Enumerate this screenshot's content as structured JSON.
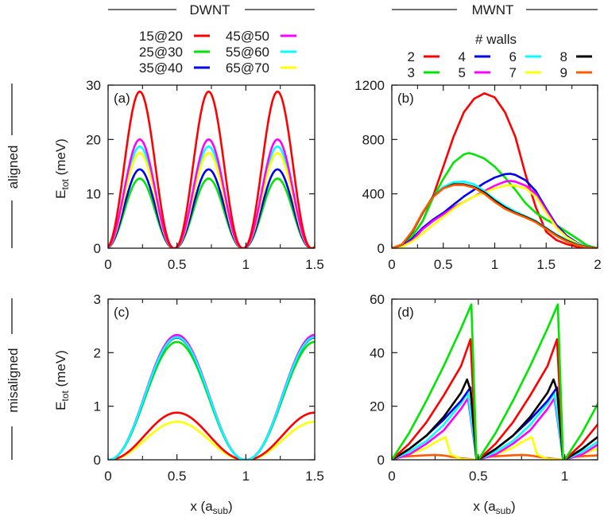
{
  "column_headers": {
    "left": "DWNT",
    "right": "MWNT"
  },
  "row_headers": {
    "top": "aligned",
    "bottom": "misaligned"
  },
  "axis_labels": {
    "y": "E",
    "y_sub": "tot",
    "y_unit": " (meV)",
    "x": "x  (a",
    "x_sub": "sub",
    "x_close": ")"
  },
  "legend_dwnt": {
    "items": [
      {
        "label": "15@20",
        "color": "#ff0000"
      },
      {
        "label": "25@30",
        "color": "#00e600"
      },
      {
        "label": "35@40",
        "color": "#0000ee"
      },
      {
        "label": "45@50",
        "color": "#ff00ff"
      },
      {
        "label": "55@60",
        "color": "#00ffff"
      },
      {
        "label": "65@70",
        "color": "#ffff00"
      }
    ]
  },
  "legend_mwnt": {
    "title": "# walls",
    "items": [
      {
        "label": "2",
        "color": "#ff0000"
      },
      {
        "label": "3",
        "color": "#00e600"
      },
      {
        "label": "4",
        "color": "#0000ee"
      },
      {
        "label": "5",
        "color": "#ff00ff"
      },
      {
        "label": "6",
        "color": "#00ffff"
      },
      {
        "label": "7",
        "color": "#ffff00"
      },
      {
        "label": "8",
        "color": "#000000"
      },
      {
        "label": "9",
        "color": "#ff5a00"
      }
    ]
  },
  "chart_data": [
    {
      "panel": "(a)",
      "type": "line",
      "title": "DWNT aligned",
      "xlabel": "",
      "ylabel": "E_tot (meV)",
      "xlim": [
        0,
        1.5
      ],
      "ylim": [
        0,
        30
      ],
      "xticks": [
        "0",
        "0.5",
        "1",
        "1.5"
      ],
      "yticks": [
        "0",
        "10",
        "20",
        "30"
      ],
      "period": 0.5,
      "peak_x": 0.22,
      "minimum_x": 0.48,
      "series": [
        {
          "name": "15@20",
          "color": "#ff0000",
          "peak": 28.8
        },
        {
          "name": "25@30",
          "color": "#00e600",
          "peak": 12.8
        },
        {
          "name": "35@40",
          "color": "#0000ee",
          "peak": 14.5
        },
        {
          "name": "45@50",
          "color": "#ff00ff",
          "peak": 20.0
        },
        {
          "name": "55@60",
          "color": "#00ffff",
          "peak": 18.7
        },
        {
          "name": "65@70",
          "color": "#ffff00",
          "peak": 17.5
        }
      ]
    },
    {
      "panel": "(b)",
      "type": "line",
      "title": "MWNT aligned",
      "xlabel": "",
      "ylabel": "",
      "xlim": [
        0,
        2
      ],
      "ylim": [
        0,
        1200
      ],
      "xticks": [
        "0",
        "0.5",
        "1",
        "1.5",
        "2"
      ],
      "yticks": [
        "0",
        "400",
        "800",
        "1200"
      ],
      "series": [
        {
          "name": "2",
          "color": "#ff0000",
          "x": [
            0,
            0.1,
            0.2,
            0.3,
            0.4,
            0.5,
            0.6,
            0.7,
            0.8,
            0.9,
            1.0,
            1.1,
            1.2,
            1.3,
            1.4,
            1.5,
            1.6,
            1.7,
            1.8,
            1.9,
            2.0
          ],
          "y": [
            0,
            20,
            90,
            200,
            380,
            600,
            820,
            1000,
            1100,
            1140,
            1110,
            1000,
            820,
            540,
            300,
            120,
            60,
            30,
            10,
            3,
            0
          ]
        },
        {
          "name": "3",
          "color": "#00e600",
          "x": [
            0,
            0.1,
            0.2,
            0.3,
            0.4,
            0.5,
            0.6,
            0.7,
            0.75,
            0.8,
            0.9,
            1.0,
            1.1,
            1.2,
            1.3,
            1.4,
            1.5,
            1.6,
            1.7,
            1.8,
            1.9,
            2.0
          ],
          "y": [
            0,
            20,
            90,
            200,
            370,
            510,
            630,
            690,
            700,
            690,
            660,
            600,
            520,
            430,
            330,
            260,
            210,
            170,
            120,
            70,
            20,
            0
          ]
        },
        {
          "name": "4",
          "color": "#0000ee",
          "x": [
            0,
            0.1,
            0.2,
            0.3,
            0.4,
            0.5,
            0.6,
            0.7,
            0.8,
            0.9,
            1.0,
            1.1,
            1.15,
            1.2,
            1.3,
            1.4,
            1.5,
            1.6,
            1.7,
            1.8,
            1.9,
            2.0
          ],
          "y": [
            0,
            15,
            70,
            150,
            210,
            260,
            320,
            380,
            430,
            480,
            520,
            545,
            548,
            540,
            500,
            420,
            290,
            170,
            90,
            40,
            10,
            0
          ]
        },
        {
          "name": "5",
          "color": "#ff00ff",
          "x": [
            0,
            0.1,
            0.2,
            0.3,
            0.4,
            0.5,
            0.6,
            0.7,
            0.8,
            0.9,
            1.0,
            1.1,
            1.15,
            1.2,
            1.3,
            1.4,
            1.5,
            1.6,
            1.7,
            1.8,
            1.9,
            2.0
          ],
          "y": [
            0,
            12,
            60,
            140,
            200,
            250,
            300,
            340,
            380,
            420,
            460,
            490,
            495,
            490,
            460,
            400,
            280,
            160,
            80,
            35,
            10,
            0
          ]
        },
        {
          "name": "6",
          "color": "#00ffff",
          "x": [
            0,
            0.1,
            0.2,
            0.3,
            0.4,
            0.5,
            0.6,
            0.7,
            0.8,
            0.9,
            1.0,
            1.1,
            1.2,
            1.3,
            1.4,
            1.5,
            1.6,
            1.7,
            1.8,
            1.9,
            2.0
          ],
          "y": [
            0,
            25,
            120,
            260,
            380,
            450,
            485,
            490,
            470,
            420,
            360,
            310,
            270,
            235,
            200,
            150,
            100,
            60,
            30,
            10,
            0
          ]
        },
        {
          "name": "7",
          "color": "#ffff00",
          "x": [
            0,
            0.1,
            0.2,
            0.3,
            0.4,
            0.5,
            0.6,
            0.7,
            0.8,
            0.9,
            1.0,
            1.1,
            1.15,
            1.2,
            1.3,
            1.4,
            1.5,
            1.6,
            1.7,
            1.8,
            1.9,
            2.0
          ],
          "y": [
            0,
            10,
            50,
            110,
            170,
            230,
            290,
            340,
            380,
            410,
            440,
            460,
            463,
            460,
            440,
            380,
            260,
            150,
            80,
            35,
            10,
            0
          ]
        },
        {
          "name": "8",
          "color": "#000000",
          "x": [
            0,
            0.1,
            0.2,
            0.3,
            0.4,
            0.5,
            0.6,
            0.7,
            0.8,
            0.9,
            1.0,
            1.1,
            1.2,
            1.3,
            1.4,
            1.5,
            1.6,
            1.7,
            1.8,
            1.9,
            2.0
          ],
          "y": [
            0,
            25,
            120,
            260,
            380,
            440,
            470,
            470,
            450,
            410,
            350,
            300,
            260,
            230,
            195,
            145,
            95,
            55,
            25,
            8,
            0
          ]
        },
        {
          "name": "9",
          "color": "#ff5a00",
          "x": [
            0,
            0.1,
            0.2,
            0.3,
            0.4,
            0.5,
            0.6,
            0.7,
            0.8,
            0.9,
            1.0,
            1.1,
            1.2,
            1.3,
            1.4,
            1.5,
            1.6,
            1.7,
            1.8,
            1.9,
            2.0
          ],
          "y": [
            0,
            28,
            125,
            265,
            375,
            440,
            465,
            465,
            445,
            400,
            340,
            290,
            255,
            225,
            190,
            140,
            90,
            50,
            22,
            6,
            0
          ]
        }
      ]
    },
    {
      "panel": "(c)",
      "type": "line",
      "title": "DWNT misaligned",
      "xlabel": "x (a_sub)",
      "ylabel": "E_tot (meV)",
      "xlim": [
        0,
        1.5
      ],
      "ylim": [
        0,
        3
      ],
      "xticks": [
        "0",
        "0.5",
        "1",
        "1.5"
      ],
      "yticks": [
        "0",
        "1",
        "2",
        "3"
      ],
      "period": 1.0,
      "peak_x": 0.5,
      "series": [
        {
          "name": "15@20",
          "color": "#ff0000",
          "peak": 0.88
        },
        {
          "name": "25@30",
          "color": "#00e600",
          "peak": 2.2
        },
        {
          "name": "35@40",
          "color": "#0000ee",
          "peak": 2.28
        },
        {
          "name": "45@50",
          "color": "#ff00ff",
          "peak": 2.33
        },
        {
          "name": "55@60",
          "color": "#00ffff",
          "peak": 2.29
        },
        {
          "name": "65@70",
          "color": "#ffff00",
          "peak": 0.71
        }
      ]
    },
    {
      "panel": "(d)",
      "type": "line",
      "title": "MWNT misaligned",
      "xlabel": "x (a_sub)",
      "ylabel": "",
      "xlim": [
        0,
        1.19
      ],
      "ylim": [
        0,
        60
      ],
      "xticks": [
        "0",
        "0.5",
        "1"
      ],
      "yticks": [
        "0",
        "20",
        "40",
        "60"
      ],
      "period": 0.5,
      "series": [
        {
          "name": "2",
          "color": "#ff0000",
          "x": [
            0,
            0.1,
            0.2,
            0.3,
            0.4,
            0.455,
            0.49
          ],
          "y": [
            0,
            6,
            14,
            24,
            35,
            45,
            0
          ]
        },
        {
          "name": "3",
          "color": "#00e600",
          "x": [
            0,
            0.1,
            0.2,
            0.3,
            0.4,
            0.46,
            0.49
          ],
          "y": [
            0,
            10,
            22,
            35,
            49,
            58,
            0
          ]
        },
        {
          "name": "4",
          "color": "#0000ee",
          "x": [
            0,
            0.1,
            0.2,
            0.3,
            0.4,
            0.455,
            0.49
          ],
          "y": [
            0,
            4,
            9,
            15,
            22,
            27,
            0
          ]
        },
        {
          "name": "5",
          "color": "#ff00ff",
          "x": [
            0,
            0.1,
            0.2,
            0.3,
            0.4,
            0.44,
            0.49
          ],
          "y": [
            0,
            2,
            6,
            11,
            19,
            23,
            0
          ]
        },
        {
          "name": "6",
          "color": "#00ffff",
          "x": [
            0,
            0.1,
            0.2,
            0.3,
            0.4,
            0.44,
            0.49
          ],
          "y": [
            0,
            3,
            7,
            13,
            21,
            25,
            0
          ]
        },
        {
          "name": "7",
          "color": "#ffff00",
          "x": [
            0,
            0.1,
            0.2,
            0.25,
            0.31,
            0.34,
            0.4,
            0.49
          ],
          "y": [
            0,
            2,
            4.5,
            6.5,
            8.5,
            2,
            0.3,
            0
          ]
        },
        {
          "name": "8",
          "color": "#000000",
          "x": [
            0,
            0.1,
            0.2,
            0.3,
            0.4,
            0.435,
            0.455,
            0.49
          ],
          "y": [
            0,
            4,
            9,
            16,
            25,
            30,
            26,
            0
          ]
        },
        {
          "name": "9",
          "color": "#ff5a00",
          "x": [
            0,
            0.1,
            0.2,
            0.25,
            0.3,
            0.4,
            0.49
          ],
          "y": [
            0.8,
            1.3,
            1.7,
            1.8,
            1.6,
            0.6,
            0
          ]
        }
      ]
    }
  ]
}
